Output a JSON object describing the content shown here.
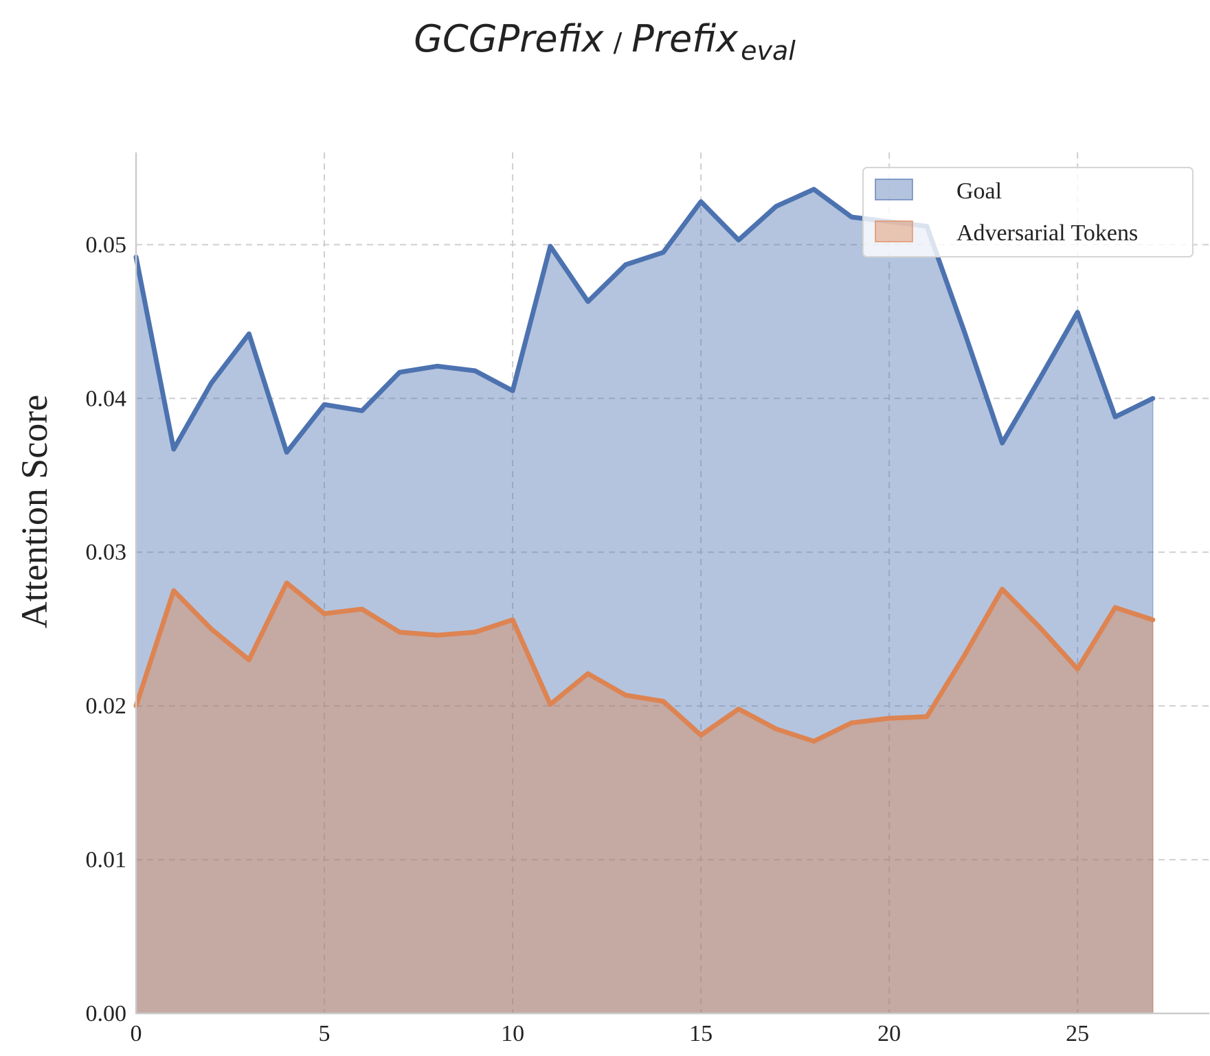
{
  "chart_data": {
    "type": "area",
    "title": {
      "main": "GCGPrefix",
      "separator": "/",
      "second": "Prefix",
      "subscript": "eval"
    },
    "xlabel": "",
    "ylabel": "Attention Score",
    "xlim": [
      0,
      28.5
    ],
    "ylim": [
      0,
      0.056
    ],
    "x_ticks": [
      0,
      5,
      10,
      15,
      20,
      25
    ],
    "x_tick_labels": [
      "0",
      "5",
      "10",
      "15",
      "20",
      "25"
    ],
    "y_ticks": [
      0,
      0.01,
      0.02,
      0.03,
      0.04,
      0.05
    ],
    "y_tick_labels": [
      "0.00",
      "0.01",
      "0.02",
      "0.03",
      "0.04",
      "0.05"
    ],
    "grid": true,
    "legend_position": "top-right",
    "x": [
      0,
      1,
      2,
      3,
      4,
      5,
      6,
      7,
      8,
      9,
      10,
      11,
      12,
      13,
      14,
      15,
      16,
      17,
      18,
      19,
      20,
      21,
      22,
      23,
      24,
      25,
      26,
      27
    ],
    "series": [
      {
        "name": "Goal",
        "color": "#4c72b0",
        "fill": "#b6c5df",
        "values": [
          0.0492,
          0.0367,
          0.041,
          0.0442,
          0.0365,
          0.0396,
          0.0392,
          0.0417,
          0.0421,
          0.0418,
          0.0405,
          0.0499,
          0.0463,
          0.0487,
          0.0495,
          0.0528,
          0.0503,
          0.0525,
          0.0536,
          0.0518,
          0.0515,
          0.0512,
          0.0443,
          0.0371,
          0.0413,
          0.0456,
          0.0388,
          0.04
        ]
      },
      {
        "name": "Adversarial Tokens",
        "color": "#dd8452",
        "fill": "#c5a9a6",
        "values": [
          0.02,
          0.0275,
          0.025,
          0.023,
          0.028,
          0.026,
          0.0263,
          0.0248,
          0.0246,
          0.0248,
          0.0256,
          0.0201,
          0.0221,
          0.0207,
          0.0203,
          0.0181,
          0.0198,
          0.0185,
          0.0177,
          0.0189,
          0.0192,
          0.0193,
          0.0233,
          0.0276,
          0.0251,
          0.0224,
          0.0264,
          0.0256
        ]
      }
    ]
  }
}
